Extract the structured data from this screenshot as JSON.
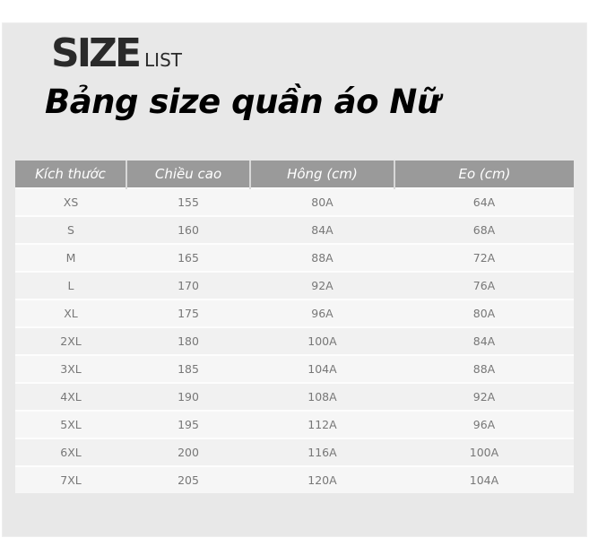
{
  "heading": {
    "size_big": "SIZE",
    "size_small": "LIST",
    "subtitle": "Bảng size quần áo Nữ"
  },
  "table": {
    "headers": [
      "Kích thước",
      "Chiều cao",
      "Hông (cm)",
      "Eo (cm)"
    ],
    "rows": [
      [
        "XS",
        "155",
        "80A",
        "64A"
      ],
      [
        "S",
        "160",
        "84A",
        "68A"
      ],
      [
        "M",
        "165",
        "88A",
        "72A"
      ],
      [
        "L",
        "170",
        "92A",
        "76A"
      ],
      [
        "XL",
        "175",
        "96A",
        "80A"
      ],
      [
        "2XL",
        "180",
        "100A",
        "84A"
      ],
      [
        "3XL",
        "185",
        "104A",
        "88A"
      ],
      [
        "4XL",
        "190",
        "108A",
        "92A"
      ],
      [
        "5XL",
        "195",
        "112A",
        "96A"
      ],
      [
        "6XL",
        "200",
        "116A",
        "100A"
      ],
      [
        "7XL",
        "205",
        "120A",
        "104A"
      ]
    ]
  },
  "colors": {
    "header_bg": "#9a9a9a",
    "panel_bg": "#e8e8e8"
  }
}
